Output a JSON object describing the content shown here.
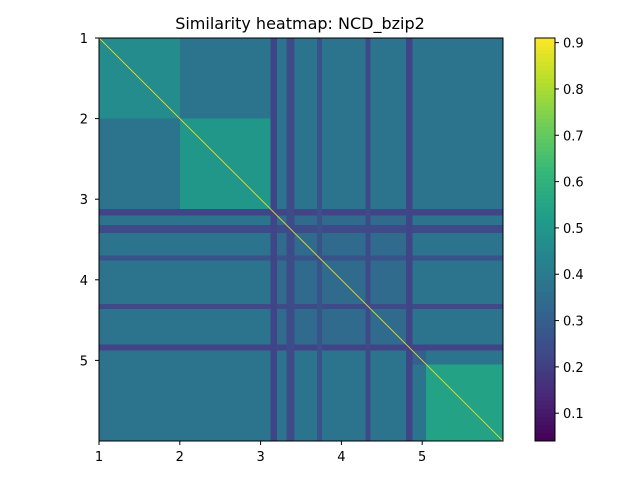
{
  "chart_data": {
    "type": "heatmap",
    "title": "Similarity heatmap: NCD_bzip2",
    "xlabel": "",
    "ylabel": "",
    "axis_range": [
      1,
      6
    ],
    "x_tick_labels": [
      "1",
      "2",
      "3",
      "4",
      "5"
    ],
    "y_tick_labels": [
      "1",
      "2",
      "3",
      "4",
      "5"
    ],
    "y_axis_inverted": true,
    "diagonal_value": 0.91,
    "colormap": "viridis",
    "colorbar": {
      "range": [
        0.04,
        0.91
      ],
      "ticks": [
        "0.1",
        "0.2",
        "0.3",
        "0.4",
        "0.5",
        "0.6",
        "0.7",
        "0.8",
        "0.9"
      ],
      "tick_values": [
        0.1,
        0.2,
        0.3,
        0.4,
        0.5,
        0.6,
        0.7,
        0.8,
        0.9
      ]
    },
    "blocks": [
      {
        "name": "1",
        "range": [
          1.0,
          2.0
        ],
        "within_similarity": 0.46
      },
      {
        "name": "2",
        "range": [
          2.0,
          3.15
        ],
        "within_similarity": 0.5
      },
      {
        "name": "3",
        "range": [
          3.15,
          4.85
        ],
        "within_similarity": 0.34
      },
      {
        "name": "4",
        "range": [
          4.85,
          5.05
        ],
        "within_similarity": 0.3
      },
      {
        "name": "5",
        "range": [
          5.05,
          6.0
        ],
        "within_similarity": 0.54
      }
    ],
    "between_block_similarity": 0.37,
    "dark_bands": [
      {
        "axis": "y",
        "range": [
          3.12,
          3.2
        ],
        "value": 0.22
      },
      {
        "axis": "y",
        "range": [
          3.32,
          3.42
        ],
        "value": 0.24
      },
      {
        "axis": "y",
        "range": [
          3.7,
          3.76
        ],
        "value": 0.26
      },
      {
        "axis": "y",
        "range": [
          4.3,
          4.36
        ],
        "value": 0.24
      },
      {
        "axis": "y",
        "range": [
          4.8,
          4.88
        ],
        "value": 0.22
      },
      {
        "axis": "x",
        "range": [
          3.12,
          3.2
        ],
        "value": 0.22
      },
      {
        "axis": "x",
        "range": [
          3.32,
          3.42
        ],
        "value": 0.24
      },
      {
        "axis": "x",
        "range": [
          3.7,
          3.76
        ],
        "value": 0.26
      },
      {
        "axis": "x",
        "range": [
          4.3,
          4.36
        ],
        "value": 0.24
      },
      {
        "axis": "x",
        "range": [
          4.8,
          4.88
        ],
        "value": 0.22
      }
    ]
  }
}
